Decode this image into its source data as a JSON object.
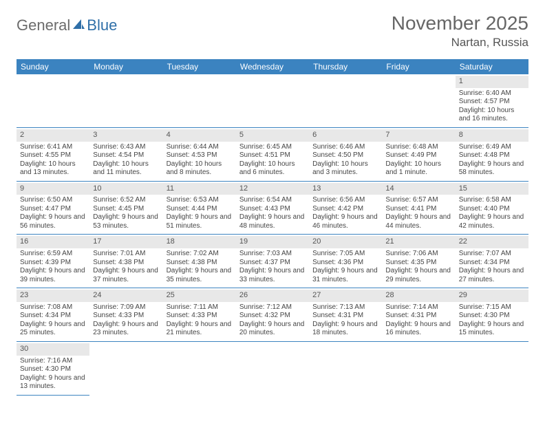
{
  "brand": {
    "part1": "General",
    "part2": "Blue"
  },
  "title": "November 2025",
  "location": "Nartan, Russia",
  "colors": {
    "header_bg": "#3b83c0",
    "header_text": "#ffffff",
    "daynum_bg": "#e8e8e8",
    "border": "#3b83c0",
    "text": "#444444"
  },
  "fonts": {
    "title_size": 28,
    "location_size": 17,
    "dayhead_size": 12,
    "cell_size": 10
  },
  "days_of_week": [
    "Sunday",
    "Monday",
    "Tuesday",
    "Wednesday",
    "Thursday",
    "Friday",
    "Saturday"
  ],
  "weeks": [
    [
      null,
      null,
      null,
      null,
      null,
      null,
      {
        "n": "1",
        "sr": "Sunrise: 6:40 AM",
        "ss": "Sunset: 4:57 PM",
        "dl": "Daylight: 10 hours and 16 minutes."
      }
    ],
    [
      {
        "n": "2",
        "sr": "Sunrise: 6:41 AM",
        "ss": "Sunset: 4:55 PM",
        "dl": "Daylight: 10 hours and 13 minutes."
      },
      {
        "n": "3",
        "sr": "Sunrise: 6:43 AM",
        "ss": "Sunset: 4:54 PM",
        "dl": "Daylight: 10 hours and 11 minutes."
      },
      {
        "n": "4",
        "sr": "Sunrise: 6:44 AM",
        "ss": "Sunset: 4:53 PM",
        "dl": "Daylight: 10 hours and 8 minutes."
      },
      {
        "n": "5",
        "sr": "Sunrise: 6:45 AM",
        "ss": "Sunset: 4:51 PM",
        "dl": "Daylight: 10 hours and 6 minutes."
      },
      {
        "n": "6",
        "sr": "Sunrise: 6:46 AM",
        "ss": "Sunset: 4:50 PM",
        "dl": "Daylight: 10 hours and 3 minutes."
      },
      {
        "n": "7",
        "sr": "Sunrise: 6:48 AM",
        "ss": "Sunset: 4:49 PM",
        "dl": "Daylight: 10 hours and 1 minute."
      },
      {
        "n": "8",
        "sr": "Sunrise: 6:49 AM",
        "ss": "Sunset: 4:48 PM",
        "dl": "Daylight: 9 hours and 58 minutes."
      }
    ],
    [
      {
        "n": "9",
        "sr": "Sunrise: 6:50 AM",
        "ss": "Sunset: 4:47 PM",
        "dl": "Daylight: 9 hours and 56 minutes."
      },
      {
        "n": "10",
        "sr": "Sunrise: 6:52 AM",
        "ss": "Sunset: 4:45 PM",
        "dl": "Daylight: 9 hours and 53 minutes."
      },
      {
        "n": "11",
        "sr": "Sunrise: 6:53 AM",
        "ss": "Sunset: 4:44 PM",
        "dl": "Daylight: 9 hours and 51 minutes."
      },
      {
        "n": "12",
        "sr": "Sunrise: 6:54 AM",
        "ss": "Sunset: 4:43 PM",
        "dl": "Daylight: 9 hours and 48 minutes."
      },
      {
        "n": "13",
        "sr": "Sunrise: 6:56 AM",
        "ss": "Sunset: 4:42 PM",
        "dl": "Daylight: 9 hours and 46 minutes."
      },
      {
        "n": "14",
        "sr": "Sunrise: 6:57 AM",
        "ss": "Sunset: 4:41 PM",
        "dl": "Daylight: 9 hours and 44 minutes."
      },
      {
        "n": "15",
        "sr": "Sunrise: 6:58 AM",
        "ss": "Sunset: 4:40 PM",
        "dl": "Daylight: 9 hours and 42 minutes."
      }
    ],
    [
      {
        "n": "16",
        "sr": "Sunrise: 6:59 AM",
        "ss": "Sunset: 4:39 PM",
        "dl": "Daylight: 9 hours and 39 minutes."
      },
      {
        "n": "17",
        "sr": "Sunrise: 7:01 AM",
        "ss": "Sunset: 4:38 PM",
        "dl": "Daylight: 9 hours and 37 minutes."
      },
      {
        "n": "18",
        "sr": "Sunrise: 7:02 AM",
        "ss": "Sunset: 4:38 PM",
        "dl": "Daylight: 9 hours and 35 minutes."
      },
      {
        "n": "19",
        "sr": "Sunrise: 7:03 AM",
        "ss": "Sunset: 4:37 PM",
        "dl": "Daylight: 9 hours and 33 minutes."
      },
      {
        "n": "20",
        "sr": "Sunrise: 7:05 AM",
        "ss": "Sunset: 4:36 PM",
        "dl": "Daylight: 9 hours and 31 minutes."
      },
      {
        "n": "21",
        "sr": "Sunrise: 7:06 AM",
        "ss": "Sunset: 4:35 PM",
        "dl": "Daylight: 9 hours and 29 minutes."
      },
      {
        "n": "22",
        "sr": "Sunrise: 7:07 AM",
        "ss": "Sunset: 4:34 PM",
        "dl": "Daylight: 9 hours and 27 minutes."
      }
    ],
    [
      {
        "n": "23",
        "sr": "Sunrise: 7:08 AM",
        "ss": "Sunset: 4:34 PM",
        "dl": "Daylight: 9 hours and 25 minutes."
      },
      {
        "n": "24",
        "sr": "Sunrise: 7:09 AM",
        "ss": "Sunset: 4:33 PM",
        "dl": "Daylight: 9 hours and 23 minutes."
      },
      {
        "n": "25",
        "sr": "Sunrise: 7:11 AM",
        "ss": "Sunset: 4:33 PM",
        "dl": "Daylight: 9 hours and 21 minutes."
      },
      {
        "n": "26",
        "sr": "Sunrise: 7:12 AM",
        "ss": "Sunset: 4:32 PM",
        "dl": "Daylight: 9 hours and 20 minutes."
      },
      {
        "n": "27",
        "sr": "Sunrise: 7:13 AM",
        "ss": "Sunset: 4:31 PM",
        "dl": "Daylight: 9 hours and 18 minutes."
      },
      {
        "n": "28",
        "sr": "Sunrise: 7:14 AM",
        "ss": "Sunset: 4:31 PM",
        "dl": "Daylight: 9 hours and 16 minutes."
      },
      {
        "n": "29",
        "sr": "Sunrise: 7:15 AM",
        "ss": "Sunset: 4:30 PM",
        "dl": "Daylight: 9 hours and 15 minutes."
      }
    ],
    [
      {
        "n": "30",
        "sr": "Sunrise: 7:16 AM",
        "ss": "Sunset: 4:30 PM",
        "dl": "Daylight: 9 hours and 13 minutes."
      },
      null,
      null,
      null,
      null,
      null,
      null
    ]
  ]
}
